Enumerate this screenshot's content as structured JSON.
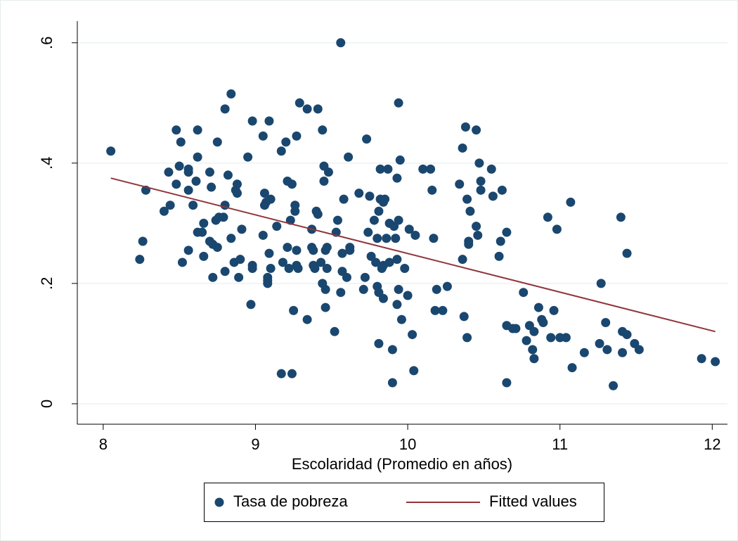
{
  "chart_data": {
    "type": "scatter",
    "xlabel": "Escolaridad (Promedio en años)",
    "xlim": [
      7.83,
      12.1
    ],
    "ylim": [
      -0.034,
      0.636
    ],
    "xticks": [
      8,
      9,
      10,
      11,
      12
    ],
    "yticks": [
      0,
      {
        "value": 0.2,
        "label": ".2"
      },
      {
        "value": 0.4,
        "label": ".4"
      },
      {
        "value": 0.6,
        "label": ".6"
      }
    ],
    "grid": true,
    "legend": "bottom",
    "series": [
      {
        "name": "Tasa de pobreza",
        "color": "#1a476f",
        "x": [
          8.05,
          8.24,
          8.26,
          8.28,
          8.4,
          8.43,
          8.44,
          8.48,
          8.48,
          8.5,
          8.51,
          8.52,
          8.56,
          8.56,
          8.56,
          8.56,
          8.59,
          8.61,
          8.62,
          8.62,
          8.62,
          8.65,
          8.66,
          8.66,
          8.7,
          8.7,
          8.71,
          8.72,
          8.72,
          8.74,
          8.75,
          8.75,
          8.76,
          8.79,
          8.8,
          8.8,
          8.8,
          8.82,
          8.84,
          8.84,
          8.86,
          8.87,
          8.88,
          8.88,
          8.89,
          8.9,
          8.91,
          8.95,
          8.97,
          8.98,
          8.98,
          8.98,
          9.05,
          9.05,
          9.06,
          9.06,
          9.07,
          9.08,
          9.08,
          9.08,
          9.09,
          9.09,
          9.1,
          9.1,
          9.14,
          9.17,
          9.17,
          9.18,
          9.2,
          9.21,
          9.21,
          9.22,
          9.23,
          9.24,
          9.24,
          9.25,
          9.26,
          9.26,
          9.27,
          9.27,
          9.27,
          9.28,
          9.29,
          9.34,
          9.34,
          9.37,
          9.37,
          9.38,
          9.38,
          9.39,
          9.4,
          9.41,
          9.41,
          9.43,
          9.44,
          9.44,
          9.45,
          9.45,
          9.46,
          9.46,
          9.46,
          9.47,
          9.47,
          9.48,
          9.52,
          9.53,
          9.54,
          9.56,
          9.56,
          9.57,
          9.57,
          9.58,
          9.6,
          9.61,
          9.62,
          9.62,
          9.68,
          9.71,
          9.72,
          9.73,
          9.74,
          9.75,
          9.76,
          9.78,
          9.79,
          9.8,
          9.8,
          9.81,
          9.81,
          9.81,
          9.82,
          9.82,
          9.83,
          9.84,
          9.84,
          9.84,
          9.85,
          9.86,
          9.87,
          9.88,
          9.88,
          9.9,
          9.9,
          9.91,
          9.92,
          9.93,
          9.93,
          9.93,
          9.94,
          9.94,
          9.94,
          9.95,
          9.96,
          9.98,
          10.0,
          10.01,
          10.03,
          10.04,
          10.05,
          10.1,
          10.15,
          10.16,
          10.17,
          10.18,
          10.19,
          10.23,
          10.26,
          10.34,
          10.36,
          10.36,
          10.37,
          10.38,
          10.39,
          10.39,
          10.4,
          10.4,
          10.41,
          10.45,
          10.45,
          10.46,
          10.47,
          10.48,
          10.48,
          10.55,
          10.56,
          10.6,
          10.61,
          10.62,
          10.65,
          10.65,
          10.65,
          10.69,
          10.71,
          10.76,
          10.78,
          10.8,
          10.82,
          10.83,
          10.83,
          10.86,
          10.88,
          10.89,
          10.92,
          10.94,
          10.96,
          10.98,
          11.0,
          11.04,
          11.07,
          11.08,
          11.16,
          11.26,
          11.27,
          11.3,
          11.31,
          11.35,
          11.4,
          11.41,
          11.41,
          11.44,
          11.44,
          11.49,
          11.52,
          11.93,
          12.02
        ],
        "values": [
          0.42,
          0.24,
          0.27,
          0.355,
          0.32,
          0.385,
          0.33,
          0.455,
          0.365,
          0.395,
          0.435,
          0.235,
          0.385,
          0.39,
          0.355,
          0.255,
          0.33,
          0.37,
          0.455,
          0.41,
          0.285,
          0.285,
          0.245,
          0.3,
          0.385,
          0.27,
          0.36,
          0.265,
          0.21,
          0.305,
          0.26,
          0.435,
          0.31,
          0.31,
          0.49,
          0.33,
          0.22,
          0.38,
          0.515,
          0.275,
          0.235,
          0.355,
          0.35,
          0.365,
          0.21,
          0.24,
          0.29,
          0.41,
          0.165,
          0.47,
          0.225,
          0.23,
          0.445,
          0.28,
          0.35,
          0.33,
          0.335,
          0.2,
          0.205,
          0.21,
          0.47,
          0.25,
          0.34,
          0.225,
          0.295,
          0.42,
          0.05,
          0.235,
          0.435,
          0.37,
          0.26,
          0.225,
          0.305,
          0.05,
          0.365,
          0.155,
          0.32,
          0.33,
          0.445,
          0.255,
          0.23,
          0.225,
          0.5,
          0.49,
          0.14,
          0.29,
          0.26,
          0.255,
          0.23,
          0.225,
          0.32,
          0.315,
          0.49,
          0.235,
          0.2,
          0.455,
          0.395,
          0.37,
          0.19,
          0.255,
          0.16,
          0.26,
          0.225,
          0.385,
          0.12,
          0.285,
          0.305,
          0.6,
          0.185,
          0.25,
          0.22,
          0.34,
          0.21,
          0.41,
          0.255,
          0.26,
          0.35,
          0.19,
          0.21,
          0.44,
          0.285,
          0.345,
          0.245,
          0.305,
          0.235,
          0.195,
          0.275,
          0.185,
          0.32,
          0.1,
          0.34,
          0.39,
          0.225,
          0.175,
          0.23,
          0.335,
          0.34,
          0.275,
          0.39,
          0.3,
          0.235,
          0.035,
          0.09,
          0.295,
          0.275,
          0.24,
          0.375,
          0.165,
          0.5,
          0.305,
          0.19,
          0.405,
          0.14,
          0.225,
          0.18,
          0.29,
          0.115,
          0.055,
          0.28,
          0.39,
          0.39,
          0.355,
          0.275,
          0.155,
          0.19,
          0.155,
          0.195,
          0.365,
          0.425,
          0.24,
          0.145,
          0.46,
          0.11,
          0.34,
          0.27,
          0.265,
          0.32,
          0.455,
          0.295,
          0.28,
          0.4,
          0.37,
          0.355,
          0.39,
          0.345,
          0.245,
          0.27,
          0.355,
          0.285,
          0.13,
          0.035,
          0.125,
          0.125,
          0.185,
          0.105,
          0.13,
          0.09,
          0.12,
          0.075,
          0.16,
          0.14,
          0.135,
          0.31,
          0.11,
          0.155,
          0.29,
          0.11,
          0.11,
          0.335,
          0.06,
          0.085,
          0.1,
          0.2,
          0.135,
          0.09,
          0.03,
          0.31,
          0.12,
          0.085,
          0.25,
          0.115,
          0.1,
          0.09,
          0.075,
          0.07
        ]
      },
      {
        "name": "Fitted values",
        "type": "line",
        "color": "#90353b",
        "x": [
          8.05,
          12.02
        ],
        "values": [
          0.375,
          0.12
        ]
      }
    ]
  }
}
